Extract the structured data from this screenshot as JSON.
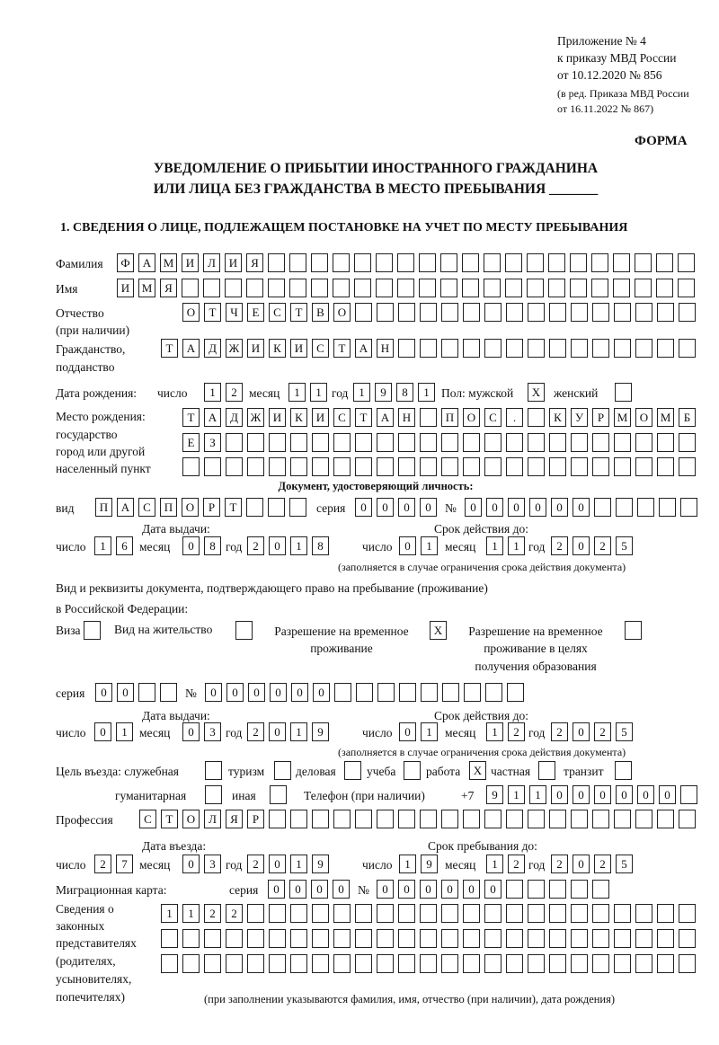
{
  "header": {
    "annex": "Приложение № 4",
    "order": "к приказу МВД России",
    "order_date": "от 10.12.2020 № 856",
    "edit1": "(в ред. Приказа МВД России",
    "edit2": "от 16.11.2022 № 867)",
    "form": "ФОРМА"
  },
  "title": {
    "line1": "УВЕДОМЛЕНИЕ О ПРИБЫТИИ ИНОСТРАННОГО ГРАЖДАНИНА",
    "line2": "ИЛИ ЛИЦА БЕЗ ГРАЖДАНСТВА В МЕСТО ПРЕБЫВАНИЯ _______"
  },
  "section1": "1. СВЕДЕНИЯ О ЛИЦЕ, ПОДЛЕЖАЩЕМ ПОСТАНОВКЕ НА УЧЕТ ПО МЕСТУ ПРЕБЫВАНИЯ",
  "labels": {
    "surname": "Фамилия",
    "name": "Имя",
    "patronymic": "Отчество",
    "patronymic2": "(при наличии)",
    "citizenship": "Гражданство,",
    "citizenship2": "подданство",
    "birth_date": "Дата рождения:",
    "day": "число",
    "month": "месяц",
    "year": "год",
    "sex": "Пол: мужской",
    "female": "женский",
    "birth_place": "Место рождения:",
    "state": "государство",
    "city": "город или другой",
    "city2": "населенный пункт",
    "id_doc": "Документ, удостоверяющий личность:",
    "kind": "вид",
    "series": "серия",
    "number": "№",
    "issue_date": "Дата выдачи:",
    "valid_until": "Срок действия до:",
    "valid_note": "(заполняется в случае ограничения срока действия документа)",
    "residence_doc": "Вид и реквизиты документа, подтверждающего право на пребывание (проживание)",
    "residence_doc2": "в Российской Федерации:",
    "visa": "Виза",
    "residence_permit": "Вид на жительство",
    "temp_permit": "Разрешение на временное",
    "temp_permit2": "проживание",
    "temp_edu": "Разрешение на временное",
    "temp_edu2": "проживание в целях",
    "temp_edu3": "получения образования",
    "purpose": "Цель въезда: служебная",
    "tourism": "туризм",
    "business": "деловая",
    "study": "учеба",
    "work": "работа",
    "private": "частная",
    "transit": "транзит",
    "humanitarian": "гуманитарная",
    "other": "иная",
    "phone": "Телефон (при наличии)",
    "phone_prefix": "+7",
    "profession": "Профессия",
    "entry_date": "Дата въезда:",
    "stay_until": "Срок пребывания до:",
    "migration_card": "Миграционная карта:",
    "reps1": "Сведения о",
    "reps2": "законных",
    "reps3": "представителях",
    "reps4": "(родителях,",
    "reps5": "усыновителях,",
    "reps6": "попечителях)",
    "reps_note": "(при заполнении указываются фамилия, имя, отчество (при наличии), дата рождения)"
  },
  "person": {
    "surname": "ФАМИЛИЯ",
    "name": "ИМЯ",
    "patronymic": "ОТЧЕСТВО",
    "citizenship": "ТАДЖИКИСТАН",
    "birth_day": "12",
    "birth_month": "11",
    "birth_year": "1981",
    "male": "X",
    "female": "",
    "birth_place1": "ТАДЖИКИСТАН ПОС. КУРМОМБ",
    "birth_place2": "ЕЗ",
    "birth_place3": ""
  },
  "id_document": {
    "kind": "ПАСПОРТ",
    "series": "0000",
    "number": "000000",
    "issue_day": "16",
    "issue_month": "08",
    "issue_year": "2018",
    "valid_day": "01",
    "valid_month": "11",
    "valid_year": "2025"
  },
  "residence": {
    "visa": "",
    "residence_permit": "",
    "temp_permit": "X",
    "temp_edu": "",
    "series": "00",
    "number": "000000",
    "issue_day": "01",
    "issue_month": "03",
    "issue_year": "2019",
    "valid_day": "01",
    "valid_month": "12",
    "valid_year": "2025"
  },
  "purpose": {
    "official": "",
    "tourism": "",
    "business": "",
    "study": "",
    "work": "X",
    "private": "",
    "transit": "",
    "humanitarian": "",
    "other": ""
  },
  "phone": "911000000",
  "profession": "СТОЛЯР",
  "entry": {
    "day": "27",
    "month": "03",
    "year": "2019",
    "stay_day": "19",
    "stay_month": "12",
    "stay_year": "2025"
  },
  "migration_card": {
    "series": "0000",
    "number": "000000"
  },
  "representatives": {
    "row1": "1122",
    "row2": "",
    "row3": ""
  }
}
